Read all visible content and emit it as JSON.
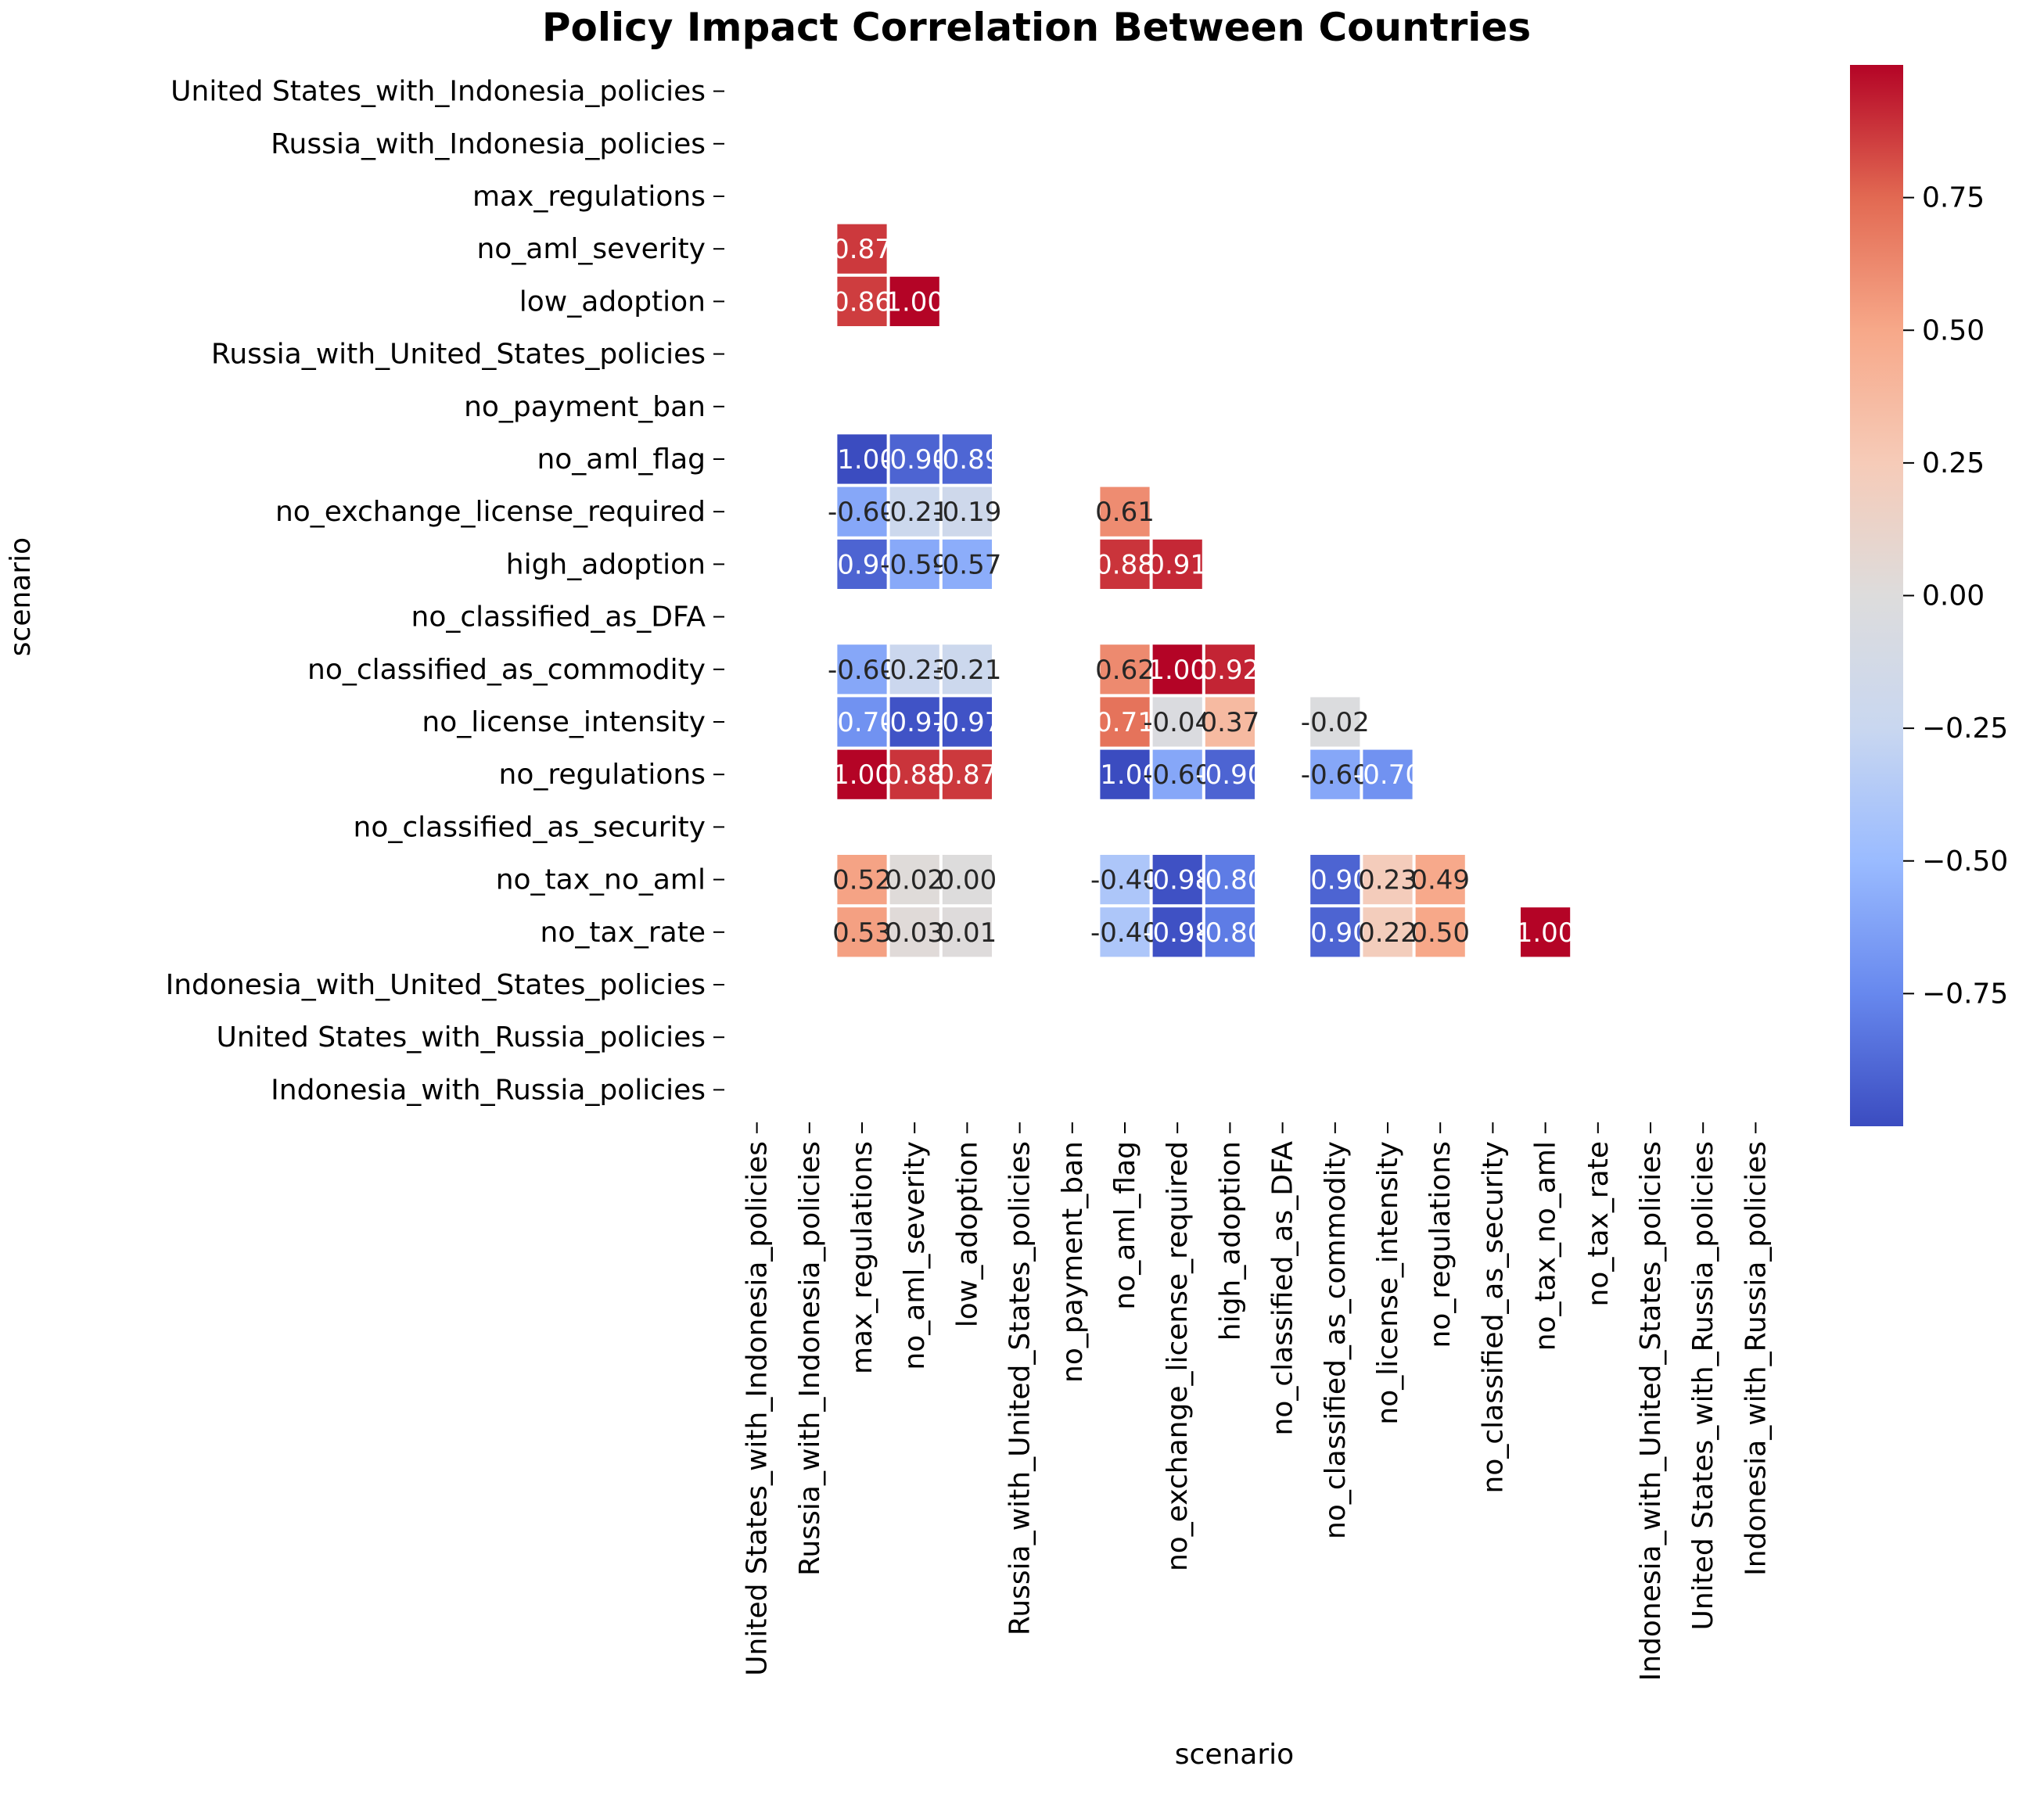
{
  "chart_data": {
    "type": "heatmap",
    "title": "Policy Impact Correlation Between Countries",
    "xlabel": "scenario",
    "ylabel": "scenario",
    "labels": [
      "United States_with_Indonesia_policies",
      "Russia_with_Indonesia_policies",
      "max_regulations",
      "no_aml_severity",
      "low_adoption",
      "Russia_with_United_States_policies",
      "no_payment_ban",
      "no_aml_flag",
      "no_exchange_license_required",
      "high_adoption",
      "no_classified_as_DFA",
      "no_classified_as_commodity",
      "no_license_intensity",
      "no_regulations",
      "no_classified_as_security",
      "no_tax_no_aml",
      "no_tax_rate",
      "Indonesia_with_United_States_policies",
      "United States_with_Russia_policies",
      "Indonesia_with_Russia_policies"
    ],
    "cells": [
      {
        "row": 3,
        "col": 2,
        "value": 0.87,
        "label": "0.87"
      },
      {
        "row": 4,
        "col": 2,
        "value": 0.86,
        "label": "0.86"
      },
      {
        "row": 4,
        "col": 3,
        "value": 1.0,
        "label": "1.00"
      },
      {
        "row": 7,
        "col": 2,
        "value": -1.0,
        "label": "-1.00"
      },
      {
        "row": 7,
        "col": 3,
        "value": -0.9,
        "label": "-0.90"
      },
      {
        "row": 7,
        "col": 4,
        "value": -0.89,
        "label": "-0.89"
      },
      {
        "row": 8,
        "col": 2,
        "value": -0.6,
        "label": "-0.60"
      },
      {
        "row": 8,
        "col": 3,
        "value": -0.21,
        "label": "-0.21"
      },
      {
        "row": 8,
        "col": 4,
        "value": -0.19,
        "label": "-0.19"
      },
      {
        "row": 8,
        "col": 7,
        "value": 0.61,
        "label": "0.61"
      },
      {
        "row": 9,
        "col": 2,
        "value": -0.9,
        "label": "-0.90"
      },
      {
        "row": 9,
        "col": 3,
        "value": -0.59,
        "label": "-0.59"
      },
      {
        "row": 9,
        "col": 4,
        "value": -0.57,
        "label": "-0.57"
      },
      {
        "row": 9,
        "col": 7,
        "value": 0.88,
        "label": "0.88"
      },
      {
        "row": 9,
        "col": 8,
        "value": 0.91,
        "label": "0.91"
      },
      {
        "row": 11,
        "col": 2,
        "value": -0.6,
        "label": "-0.60"
      },
      {
        "row": 11,
        "col": 3,
        "value": -0.23,
        "label": "-0.23"
      },
      {
        "row": 11,
        "col": 4,
        "value": -0.21,
        "label": "-0.21"
      },
      {
        "row": 11,
        "col": 7,
        "value": 0.62,
        "label": "0.62"
      },
      {
        "row": 11,
        "col": 8,
        "value": 1.0,
        "label": "1.00"
      },
      {
        "row": 11,
        "col": 9,
        "value": 0.92,
        "label": "0.92"
      },
      {
        "row": 12,
        "col": 2,
        "value": -0.7,
        "label": "-0.70"
      },
      {
        "row": 12,
        "col": 3,
        "value": -0.97,
        "label": "-0.97"
      },
      {
        "row": 12,
        "col": 4,
        "value": -0.97,
        "label": "-0.97"
      },
      {
        "row": 12,
        "col": 7,
        "value": 0.71,
        "label": "0.71"
      },
      {
        "row": 12,
        "col": 8,
        "value": -0.04,
        "label": "-0.04"
      },
      {
        "row": 12,
        "col": 9,
        "value": 0.37,
        "label": "0.37"
      },
      {
        "row": 12,
        "col": 11,
        "value": -0.02,
        "label": "-0.02"
      },
      {
        "row": 13,
        "col": 2,
        "value": 1.0,
        "label": "1.00"
      },
      {
        "row": 13,
        "col": 3,
        "value": 0.88,
        "label": "0.88"
      },
      {
        "row": 13,
        "col": 4,
        "value": 0.87,
        "label": "0.87"
      },
      {
        "row": 13,
        "col": 7,
        "value": -1.0,
        "label": "-1.00"
      },
      {
        "row": 13,
        "col": 8,
        "value": -0.6,
        "label": "-0.60"
      },
      {
        "row": 13,
        "col": 9,
        "value": -0.9,
        "label": "-0.90"
      },
      {
        "row": 13,
        "col": 11,
        "value": -0.6,
        "label": "-0.60"
      },
      {
        "row": 13,
        "col": 12,
        "value": -0.7,
        "label": "-0.70"
      },
      {
        "row": 15,
        "col": 2,
        "value": 0.52,
        "label": "0.52"
      },
      {
        "row": 15,
        "col": 3,
        "value": 0.02,
        "label": "0.02"
      },
      {
        "row": 15,
        "col": 4,
        "value": 0.0,
        "label": "0.00"
      },
      {
        "row": 15,
        "col": 7,
        "value": -0.4,
        "label": "-0.40"
      },
      {
        "row": 15,
        "col": 8,
        "value": -0.98,
        "label": "-0.98"
      },
      {
        "row": 15,
        "col": 9,
        "value": -0.8,
        "label": "-0.80"
      },
      {
        "row": 15,
        "col": 11,
        "value": -0.9,
        "label": "-0.90"
      },
      {
        "row": 15,
        "col": 12,
        "value": 0.23,
        "label": "0.23"
      },
      {
        "row": 15,
        "col": 13,
        "value": 0.49,
        "label": "0.49"
      },
      {
        "row": 16,
        "col": 2,
        "value": 0.53,
        "label": "0.53"
      },
      {
        "row": 16,
        "col": 3,
        "value": 0.03,
        "label": "0.03"
      },
      {
        "row": 16,
        "col": 4,
        "value": 0.01,
        "label": "0.01"
      },
      {
        "row": 16,
        "col": 7,
        "value": -0.4,
        "label": "-0.40"
      },
      {
        "row": 16,
        "col": 8,
        "value": -0.98,
        "label": "-0.98"
      },
      {
        "row": 16,
        "col": 9,
        "value": -0.8,
        "label": "-0.80"
      },
      {
        "row": 16,
        "col": 11,
        "value": -0.9,
        "label": "-0.90"
      },
      {
        "row": 16,
        "col": 12,
        "value": 0.22,
        "label": "0.22"
      },
      {
        "row": 16,
        "col": 13,
        "value": 0.5,
        "label": "0.50"
      },
      {
        "row": 16,
        "col": 15,
        "value": 1.0,
        "label": "1.00"
      }
    ],
    "colorbar": {
      "range": [
        -1.0,
        1.0
      ],
      "ticks": [
        0.75,
        0.5,
        0.25,
        0.0,
        -0.25,
        -0.5,
        -0.75
      ],
      "tick_labels": [
        "0.75",
        "0.50",
        "0.25",
        "0.00",
        "−0.25",
        "−0.50",
        "−0.75"
      ],
      "colormap": "coolwarm",
      "color_stops": [
        "#3b4cc0",
        "#6788ee",
        "#9abbff",
        "#c9d7f0",
        "#dddcdc",
        "#f6cbb8",
        "#f7a889",
        "#e26952",
        "#b40426"
      ]
    },
    "grid": false,
    "legend": "right"
  }
}
